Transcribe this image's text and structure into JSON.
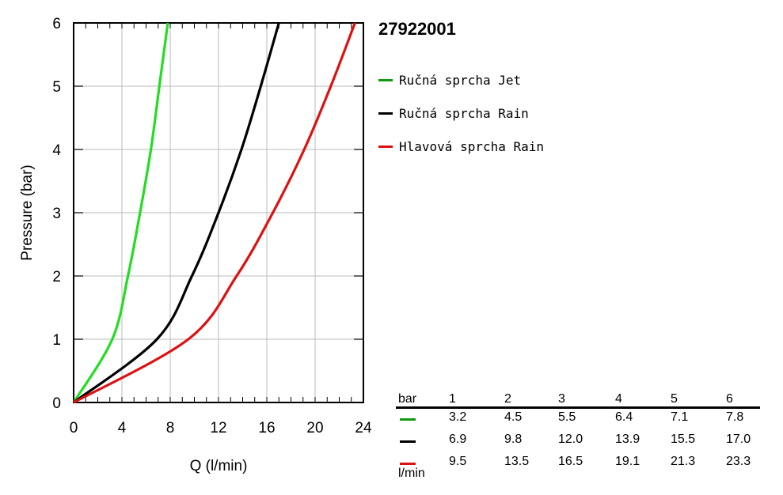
{
  "title": "27922001",
  "chart_data": {
    "type": "line",
    "xlabel": "Q (l/min)",
    "ylabel": "Pressure (bar)",
    "xlim": [
      0,
      24
    ],
    "ylim": [
      0,
      6
    ],
    "xticks": [
      0,
      4,
      8,
      12,
      16,
      20,
      24
    ],
    "yticks": [
      0,
      1,
      2,
      3,
      4,
      5,
      6
    ],
    "grid": true,
    "legend_position": "right",
    "series": [
      {
        "name": "Ručná sprcha Jet",
        "color": "#22dd22",
        "x": [
          0,
          3.2,
          4.5,
          5.5,
          6.4,
          7.1,
          7.8
        ],
        "y": [
          0,
          1,
          2,
          3,
          4,
          5,
          6
        ]
      },
      {
        "name": "Ručná sprcha Rain",
        "color": "#000000",
        "x": [
          0,
          6.9,
          9.8,
          12.0,
          13.9,
          15.5,
          17.0
        ],
        "y": [
          0,
          1,
          2,
          3,
          4,
          5,
          6
        ]
      },
      {
        "name": "Hlavová sprcha Rain",
        "color": "#dd1111",
        "x": [
          0,
          9.5,
          13.5,
          16.5,
          19.1,
          21.3,
          23.3
        ],
        "y": [
          0,
          1,
          2,
          3,
          4,
          5,
          6
        ]
      }
    ]
  },
  "table": {
    "unit_top": "bar",
    "unit_bottom": "l/min",
    "headers": [
      "1",
      "2",
      "3",
      "4",
      "5",
      "6"
    ],
    "rows": [
      {
        "color": "#119911",
        "values": [
          "3.2",
          "4.5",
          "5.5",
          "6.4",
          "7.1",
          "7.8"
        ]
      },
      {
        "color": "#000000",
        "values": [
          "6.9",
          "9.8",
          "12.0",
          "13.9",
          "15.5",
          "17.0"
        ]
      },
      {
        "color": "#dd1111",
        "values": [
          "9.5",
          "13.5",
          "16.5",
          "19.1",
          "21.3",
          "23.3"
        ]
      }
    ]
  }
}
